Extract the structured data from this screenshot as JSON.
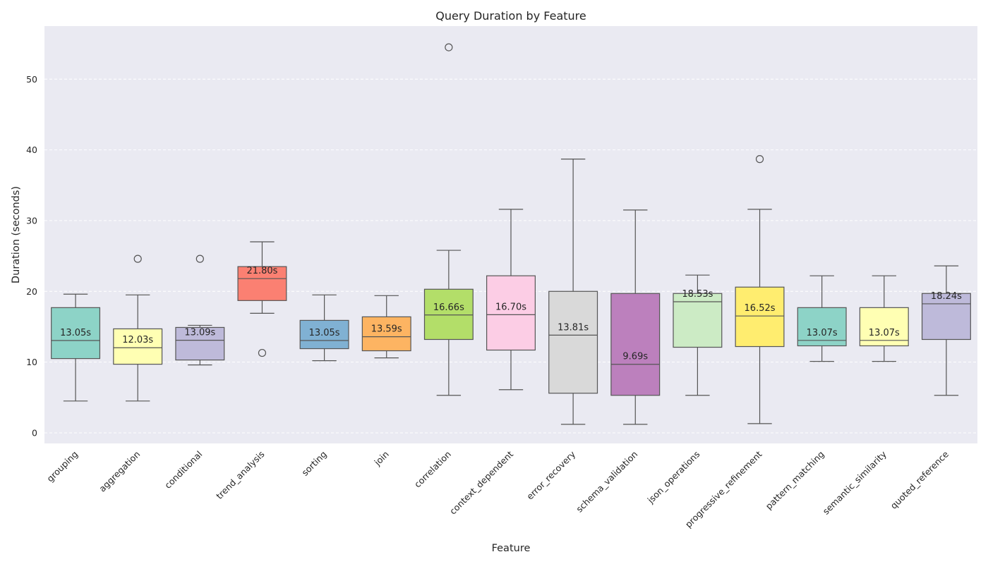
{
  "chart_data": {
    "type": "box",
    "title": "Query Duration by Feature",
    "xlabel": "Feature",
    "ylabel": "Duration (seconds)",
    "ylim": [
      -1.5,
      57.5
    ],
    "yticks": [
      0,
      10,
      20,
      30,
      40,
      50
    ],
    "grid": "horizontal-dashed",
    "median_label_suffix": "s",
    "boxes": [
      {
        "category": "grouping",
        "color": "#8dd3c7",
        "whisker_low": 4.5,
        "q1": 10.5,
        "median": 13.05,
        "q3": 17.7,
        "whisker_high": 19.6,
        "median_label": "13.05s",
        "outliers": []
      },
      {
        "category": "aggregation",
        "color": "#ffffb3",
        "whisker_low": 4.5,
        "q1": 9.7,
        "median": 12.03,
        "q3": 14.7,
        "whisker_high": 19.5,
        "median_label": "12.03s",
        "outliers": [
          24.6
        ]
      },
      {
        "category": "conditional",
        "color": "#bebada",
        "whisker_low": 9.6,
        "q1": 10.3,
        "median": 13.09,
        "q3": 14.9,
        "whisker_high": 15.2,
        "median_label": "13.09s",
        "outliers": [
          24.6
        ]
      },
      {
        "category": "trend_analysis",
        "color": "#fb8072",
        "whisker_low": 16.9,
        "q1": 18.7,
        "median": 21.8,
        "q3": 23.5,
        "whisker_high": 27.0,
        "median_label": "21.80s",
        "outliers": [
          11.3
        ]
      },
      {
        "category": "sorting",
        "color": "#80b1d3",
        "whisker_low": 10.2,
        "q1": 11.9,
        "median": 13.05,
        "q3": 15.9,
        "whisker_high": 19.5,
        "median_label": "13.05s",
        "outliers": []
      },
      {
        "category": "join",
        "color": "#fdb462",
        "whisker_low": 10.6,
        "q1": 11.6,
        "median": 13.59,
        "q3": 16.4,
        "whisker_high": 19.4,
        "median_label": "13.59s",
        "outliers": []
      },
      {
        "category": "correlation",
        "color": "#b3de69",
        "whisker_low": 5.3,
        "q1": 13.2,
        "median": 16.66,
        "q3": 20.3,
        "whisker_high": 25.8,
        "median_label": "16.66s",
        "outliers": [
          54.5
        ]
      },
      {
        "category": "context_dependent",
        "color": "#fccde5",
        "whisker_low": 6.1,
        "q1": 11.7,
        "median": 16.7,
        "q3": 22.2,
        "whisker_high": 31.6,
        "median_label": "16.70s",
        "outliers": []
      },
      {
        "category": "error_recovery",
        "color": "#d9d9d9",
        "whisker_low": 1.2,
        "q1": 5.6,
        "median": 13.81,
        "q3": 20.0,
        "whisker_high": 38.7,
        "median_label": "13.81s",
        "outliers": []
      },
      {
        "category": "schema_validation",
        "color": "#bc80bd",
        "whisker_low": 1.2,
        "q1": 5.3,
        "median": 9.69,
        "q3": 19.7,
        "whisker_high": 31.5,
        "median_label": "9.69s",
        "outliers": []
      },
      {
        "category": "json_operations",
        "color": "#ccebc5",
        "whisker_low": 5.3,
        "q1": 12.1,
        "median": 18.53,
        "q3": 19.7,
        "whisker_high": 22.3,
        "median_label": "18.53s",
        "outliers": []
      },
      {
        "category": "progressive_refinement",
        "color": "#ffed6f",
        "whisker_low": 1.3,
        "q1": 12.2,
        "median": 16.52,
        "q3": 20.6,
        "whisker_high": 31.6,
        "median_label": "16.52s",
        "outliers": [
          38.7
        ]
      },
      {
        "category": "pattern_matching",
        "color": "#8dd3c7",
        "whisker_low": 10.1,
        "q1": 12.3,
        "median": 13.07,
        "q3": 17.7,
        "whisker_high": 22.2,
        "median_label": "13.07s",
        "outliers": []
      },
      {
        "category": "semantic_similarity",
        "color": "#ffffb3",
        "whisker_low": 10.1,
        "q1": 12.3,
        "median": 13.07,
        "q3": 17.7,
        "whisker_high": 22.2,
        "median_label": "13.07s",
        "outliers": []
      },
      {
        "category": "quoted_reference",
        "color": "#bebada",
        "whisker_low": 5.3,
        "q1": 13.2,
        "median": 18.24,
        "q3": 19.7,
        "whisker_high": 23.6,
        "median_label": "18.24s",
        "outliers": []
      }
    ]
  }
}
